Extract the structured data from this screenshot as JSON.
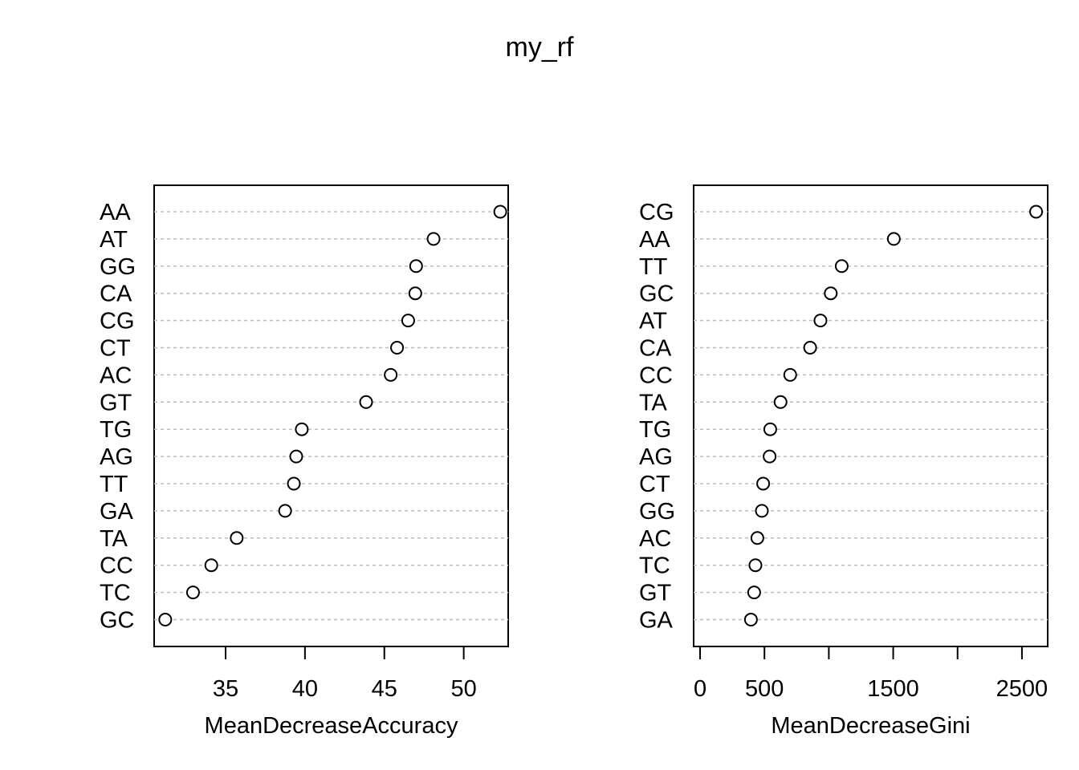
{
  "title": "my_rf",
  "chart_data": [
    {
      "type": "scatter",
      "xlabel": "MeanDecreaseAccuracy",
      "xlim": [
        30.5,
        52.8
      ],
      "xticks": [
        35,
        40,
        45,
        50
      ],
      "tick_labels": [
        "35",
        "40",
        "45",
        "50"
      ],
      "grid": "dotted row lines",
      "categories": [
        "AA",
        "AT",
        "GG",
        "CA",
        "CG",
        "CT",
        "AC",
        "GT",
        "TG",
        "AG",
        "TT",
        "GA",
        "TA",
        "CC",
        "TC",
        "GC"
      ],
      "values": [
        52.3,
        48.1,
        47.0,
        46.95,
        46.5,
        45.8,
        45.4,
        43.85,
        39.8,
        39.45,
        39.3,
        38.75,
        35.7,
        34.1,
        32.95,
        31.2
      ]
    },
    {
      "type": "scatter",
      "xlabel": "MeanDecreaseGini",
      "xlim": [
        -50,
        2700
      ],
      "xticks": [
        0,
        500,
        1000,
        1500,
        2000,
        2500
      ],
      "tick_labels": [
        "0",
        "500",
        "",
        "1500",
        "",
        "2500"
      ],
      "grid": "dotted row lines",
      "categories": [
        "CG",
        "AA",
        "TT",
        "GC",
        "AT",
        "CA",
        "CC",
        "TA",
        "TG",
        "AG",
        "CT",
        "GG",
        "AC",
        "TC",
        "GT",
        "GA"
      ],
      "values": [
        2610,
        1505,
        1100,
        1015,
        935,
        855,
        700,
        625,
        545,
        540,
        490,
        480,
        445,
        430,
        420,
        395
      ]
    }
  ]
}
